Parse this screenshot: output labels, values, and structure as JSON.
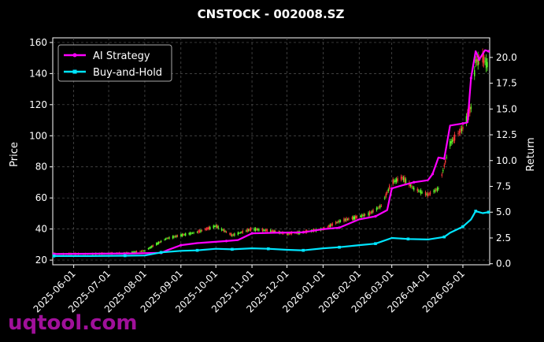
{
  "chart_data": {
    "type": "line",
    "title": "CNSTOCK - 002008.SZ",
    "ylabel": "Price",
    "ylabel_right": "Return",
    "x_ticks": [
      "2025-06-01",
      "2025-07-01",
      "2025-08-01",
      "2025-09-01",
      "2025-10-01",
      "2025-11-01",
      "2025-12-01",
      "2026-01-01",
      "2026-02-01",
      "2026-03-01",
      "2026-04-01",
      "2026-05-01"
    ],
    "x_range": [
      "2025-05-14",
      "2026-05-24"
    ],
    "y_ticks": [
      20,
      40,
      60,
      80,
      100,
      120,
      140,
      160
    ],
    "ylim": [
      17,
      163
    ],
    "y2_ticks": [
      "0.0",
      "2.5",
      "5.0",
      "7.5",
      "10.0",
      "12.5",
      "15.0",
      "17.5",
      "20.0"
    ],
    "y2lim": [
      -0.1,
      21.9
    ],
    "grid": true,
    "legend_position": "top-left",
    "price_series": [
      [
        "2025-05-15",
        24
      ],
      [
        "2025-06-15",
        24
      ],
      [
        "2025-07-15",
        24.5
      ],
      [
        "2025-08-01",
        26
      ],
      [
        "2025-08-10",
        30
      ],
      [
        "2025-08-20",
        34
      ],
      [
        "2025-09-01",
        36
      ],
      [
        "2025-09-15",
        38
      ],
      [
        "2025-10-01",
        42
      ],
      [
        "2025-10-15",
        36
      ],
      [
        "2025-11-01",
        40
      ],
      [
        "2025-11-15",
        39
      ],
      [
        "2025-12-01",
        37
      ],
      [
        "2025-12-15",
        38
      ],
      [
        "2026-01-01",
        40
      ],
      [
        "2026-01-15",
        45
      ],
      [
        "2026-02-01",
        48
      ],
      [
        "2026-02-10",
        50
      ],
      [
        "2026-02-20",
        55
      ],
      [
        "2026-03-01",
        70
      ],
      [
        "2026-03-10",
        73
      ],
      [
        "2026-03-20",
        66
      ],
      [
        "2026-04-01",
        62
      ],
      [
        "2026-04-10",
        66
      ],
      [
        "2026-04-20",
        95
      ],
      [
        "2026-05-01",
        105
      ],
      [
        "2026-05-08",
        118
      ],
      [
        "2026-05-12",
        148
      ],
      [
        "2026-05-18",
        150
      ],
      [
        "2026-05-23",
        145
      ]
    ],
    "series": [
      {
        "name": "AI Strategy",
        "color": "#ff00ff",
        "values": [
          [
            "2025-05-15",
            0.95
          ],
          [
            "2025-07-20",
            1.0
          ],
          [
            "2025-08-15",
            1.05
          ],
          [
            "2025-08-20",
            1.3
          ],
          [
            "2025-09-01",
            1.8
          ],
          [
            "2025-09-15",
            2.0
          ],
          [
            "2025-10-10",
            2.2
          ],
          [
            "2025-10-20",
            2.3
          ],
          [
            "2025-11-01",
            2.95
          ],
          [
            "2025-11-20",
            3.0
          ],
          [
            "2025-12-15",
            3.05
          ],
          [
            "2026-01-01",
            3.35
          ],
          [
            "2026-01-15",
            3.5
          ],
          [
            "2026-02-01",
            4.3
          ],
          [
            "2026-02-15",
            4.6
          ],
          [
            "2026-02-25",
            5.2
          ],
          [
            "2026-03-01",
            7.3
          ],
          [
            "2026-03-10",
            7.6
          ],
          [
            "2026-03-20",
            7.9
          ],
          [
            "2026-04-01",
            8.1
          ],
          [
            "2026-04-05",
            8.7
          ],
          [
            "2026-04-10",
            10.3
          ],
          [
            "2026-04-15",
            10.2
          ],
          [
            "2026-04-20",
            13.4
          ],
          [
            "2026-05-01",
            13.6
          ],
          [
            "2026-05-05",
            13.7
          ],
          [
            "2026-05-08",
            18.0
          ],
          [
            "2026-05-12",
            20.6
          ],
          [
            "2026-05-15",
            19.8
          ],
          [
            "2026-05-20",
            20.7
          ],
          [
            "2026-05-23",
            20.6
          ]
        ]
      },
      {
        "name": "Buy-and-Hold",
        "color": "#00e5ff",
        "values": [
          [
            "2025-05-15",
            0.75
          ],
          [
            "2025-06-15",
            0.75
          ],
          [
            "2025-07-15",
            0.78
          ],
          [
            "2025-08-01",
            0.8
          ],
          [
            "2025-08-15",
            1.1
          ],
          [
            "2025-09-01",
            1.25
          ],
          [
            "2025-09-15",
            1.3
          ],
          [
            "2025-10-01",
            1.45
          ],
          [
            "2025-10-15",
            1.4
          ],
          [
            "2025-11-01",
            1.5
          ],
          [
            "2025-11-15",
            1.45
          ],
          [
            "2025-12-01",
            1.35
          ],
          [
            "2025-12-15",
            1.3
          ],
          [
            "2026-01-01",
            1.5
          ],
          [
            "2026-01-15",
            1.6
          ],
          [
            "2026-02-01",
            1.8
          ],
          [
            "2026-02-15",
            1.95
          ],
          [
            "2026-03-01",
            2.5
          ],
          [
            "2026-03-15",
            2.4
          ],
          [
            "2026-04-01",
            2.35
          ],
          [
            "2026-04-15",
            2.6
          ],
          [
            "2026-04-20",
            3.0
          ],
          [
            "2026-05-01",
            3.6
          ],
          [
            "2026-05-08",
            4.3
          ],
          [
            "2026-05-12",
            5.1
          ],
          [
            "2026-05-18",
            4.9
          ],
          [
            "2026-05-23",
            5.0
          ]
        ]
      }
    ]
  },
  "watermark": "uqtool.com"
}
